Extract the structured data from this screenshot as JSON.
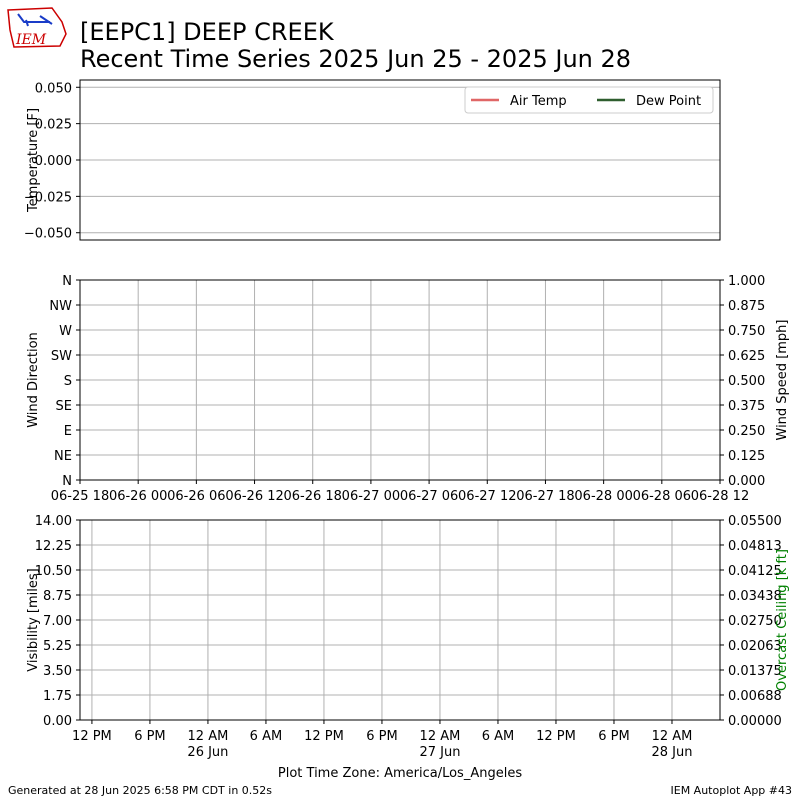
{
  "header": {
    "logo": "IEM",
    "title": "[EEPC1] DEEP CREEK",
    "subtitle": "Recent Time Series 2025 Jun 25 - 2025 Jun 28"
  },
  "footer": {
    "left": "Generated at 28 Jun 2025 6:58 PM CDT in 0.52s",
    "right": "IEM Autoplot App #43"
  },
  "chart_data": [
    {
      "type": "line",
      "ylabel": "Temperature [F]",
      "ylim": [
        -0.055,
        0.055
      ],
      "yticks": [
        {
          "value": -0.05,
          "label": "−0.050"
        },
        {
          "value": -0.025,
          "label": "−0.025"
        },
        {
          "value": 0,
          "label": "0.000"
        },
        {
          "value": 0.025,
          "label": "0.025"
        },
        {
          "value": 0.05,
          "label": "0.050"
        }
      ],
      "xlim": [
        "06-25 18",
        "06-28 12"
      ],
      "series": [
        {
          "name": "Air Temp",
          "color": "#e06666",
          "x": [],
          "values": []
        },
        {
          "name": "Dew Point",
          "color": "#2e5e2e",
          "x": [],
          "values": []
        }
      ],
      "legend": "upper right",
      "grid": "y"
    },
    {
      "type": "line",
      "ylabel": "Wind Direction",
      "y2label": "Wind Speed [mph]",
      "ylim": [
        0,
        360
      ],
      "yticks": [
        {
          "value": 0,
          "label": "N"
        },
        {
          "value": 45,
          "label": "NE"
        },
        {
          "value": 90,
          "label": "E"
        },
        {
          "value": 135,
          "label": "SE"
        },
        {
          "value": 180,
          "label": "S"
        },
        {
          "value": 225,
          "label": "SW"
        },
        {
          "value": 270,
          "label": "W"
        },
        {
          "value": 315,
          "label": "NW"
        },
        {
          "value": 360,
          "label": "N"
        }
      ],
      "y2lim": [
        0,
        1
      ],
      "y2ticks": [
        {
          "value": 0,
          "label": "0.000"
        },
        {
          "value": 0.125,
          "label": "0.125"
        },
        {
          "value": 0.25,
          "label": "0.250"
        },
        {
          "value": 0.375,
          "label": "0.375"
        },
        {
          "value": 0.5,
          "label": "0.500"
        },
        {
          "value": 0.625,
          "label": "0.625"
        },
        {
          "value": 0.75,
          "label": "0.750"
        },
        {
          "value": 0.875,
          "label": "0.875"
        },
        {
          "value": 1,
          "label": "1.000"
        }
      ],
      "xlim": [
        "06-25 18",
        "06-28 12"
      ],
      "xticks": [
        "06-25 18",
        "06-26 00",
        "06-26 06",
        "06-26 12",
        "06-26 18",
        "06-27 00",
        "06-27 06",
        "06-27 12",
        "06-27 18",
        "06-28 00",
        "06-28 06",
        "06-28 12"
      ],
      "grid": "both"
    },
    {
      "type": "line",
      "ylabel": "Visibility [miles]",
      "y2label": "Overcast Ceiling [k ft]",
      "y2label_color": "green",
      "xlabel": "Plot Time Zone: America/Los_Angeles",
      "ylim": [
        0,
        14
      ],
      "yticks": [
        {
          "value": 0,
          "label": "0.00"
        },
        {
          "value": 1.75,
          "label": "1.75"
        },
        {
          "value": 3.5,
          "label": "3.50"
        },
        {
          "value": 5.25,
          "label": "5.25"
        },
        {
          "value": 7,
          "label": "7.00"
        },
        {
          "value": 8.75,
          "label": "8.75"
        },
        {
          "value": 10.5,
          "label": "10.50"
        },
        {
          "value": 12.25,
          "label": "12.25"
        },
        {
          "value": 14,
          "label": "14.00"
        }
      ],
      "y2lim": [
        0,
        0.055
      ],
      "y2ticks": [
        {
          "value": 0,
          "label": "0.00000"
        },
        {
          "value": 0.00688,
          "label": "0.00688"
        },
        {
          "value": 0.01375,
          "label": "0.01375"
        },
        {
          "value": 0.02063,
          "label": "0.02063"
        },
        {
          "value": 0.0275,
          "label": "0.02750"
        },
        {
          "value": 0.03438,
          "label": "0.03438"
        },
        {
          "value": 0.04125,
          "label": "0.04125"
        },
        {
          "value": 0.04813,
          "label": "0.04813"
        },
        {
          "value": 0.055,
          "label": "0.05500"
        }
      ],
      "xlim": [
        "06-25 10:46",
        "06-28 04:58"
      ],
      "xticks": [
        {
          "value": "06-25 12",
          "label": "12 PM"
        },
        {
          "value": "06-25 18",
          "label": "6 PM"
        },
        {
          "value": "06-26 00",
          "label": "12 AM\n26 Jun"
        },
        {
          "value": "06-26 06",
          "label": "6 AM"
        },
        {
          "value": "06-26 12",
          "label": "12 PM"
        },
        {
          "value": "06-26 18",
          "label": "6 PM"
        },
        {
          "value": "06-27 00",
          "label": "12 AM\n27 Jun"
        },
        {
          "value": "06-27 06",
          "label": "6 AM"
        },
        {
          "value": "06-27 12",
          "label": "12 PM"
        },
        {
          "value": "06-27 18",
          "label": "6 PM"
        },
        {
          "value": "06-28 00",
          "label": "12 AM\n28 Jun"
        }
      ],
      "grid": "both"
    }
  ]
}
